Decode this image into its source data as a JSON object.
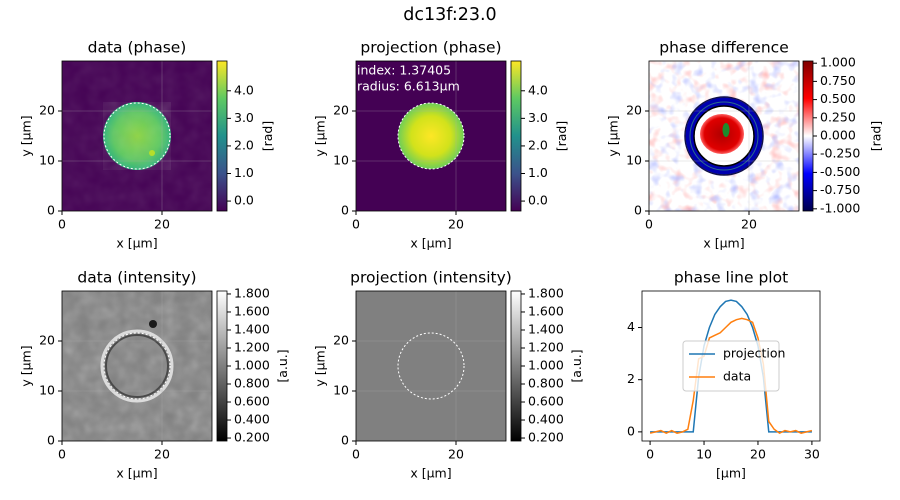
{
  "title": "dc13f:23.0",
  "chart_data": [
    {
      "type": "image",
      "title": "data (phase)",
      "xlabel": "x [µm]",
      "ylabel": "y [µm]",
      "xlim": [
        0,
        30
      ],
      "ylim": [
        0,
        30
      ],
      "xticks": [
        0,
        20
      ],
      "yticks": [
        0,
        10,
        20
      ],
      "grid": true,
      "colorbar": {
        "label": "[rad]",
        "colormap": "viridis",
        "lim": [
          -0.36,
          5.08
        ],
        "ticks": [
          {
            "value": 0,
            "label": "0.0"
          },
          {
            "value": 1,
            "label": "1.0"
          },
          {
            "value": 2,
            "label": "2.0"
          },
          {
            "value": 3,
            "label": "3.0"
          },
          {
            "value": 4,
            "label": "4.0"
          }
        ]
      }
    },
    {
      "type": "image",
      "title": "projection (phase)",
      "xlabel": "x [µm]",
      "ylabel": "y [µm]",
      "xlim": [
        0,
        30
      ],
      "ylim": [
        0,
        30
      ],
      "xticks": [
        0,
        20
      ],
      "yticks": [
        0,
        10,
        20
      ],
      "grid": true,
      "annotations": [
        "index: 1.37405",
        "radius: 6.613µm"
      ],
      "colorbar": {
        "label": "[rad]",
        "colormap": "viridis",
        "lim": [
          -0.36,
          5.08
        ],
        "ticks": [
          {
            "value": 0,
            "label": "0.0"
          },
          {
            "value": 1,
            "label": "1.0"
          },
          {
            "value": 2,
            "label": "2.0"
          },
          {
            "value": 3,
            "label": "3.0"
          },
          {
            "value": 4,
            "label": "4.0"
          }
        ]
      }
    },
    {
      "type": "image",
      "title": "phase difference",
      "xlabel": "x [µm]",
      "ylabel": "y [µm]",
      "xlim": [
        0,
        30
      ],
      "ylim": [
        0,
        30
      ],
      "xticks": [
        0,
        20
      ],
      "yticks": [
        0,
        10,
        20
      ],
      "grid": true,
      "colorbar": {
        "label": "[rad]",
        "colormap": "seismic",
        "lim": [
          -1.03,
          1.03
        ],
        "ticks": [
          {
            "value": 1,
            "label": "1.000"
          },
          {
            "value": 0.75,
            "label": "0.750"
          },
          {
            "value": 0.5,
            "label": "0.500"
          },
          {
            "value": 0.25,
            "label": "0.250"
          },
          {
            "value": 0,
            "label": "0.000"
          },
          {
            "value": -0.25,
            "label": "-0.250"
          },
          {
            "value": -0.5,
            "label": "-0.500"
          },
          {
            "value": -0.75,
            "label": "-0.750"
          },
          {
            "value": -1,
            "label": "-1.000"
          }
        ]
      }
    },
    {
      "type": "image",
      "title": "data (intensity)",
      "xlabel": "x [µm]",
      "ylabel": "y [µm]",
      "xlim": [
        0,
        30
      ],
      "ylim": [
        0,
        30
      ],
      "xticks": [
        0,
        20
      ],
      "yticks": [
        0,
        10,
        20
      ],
      "grid": true,
      "colorbar": {
        "label": "[a.u.]",
        "colormap": "gray",
        "lim": [
          0.167,
          1.833
        ],
        "ticks": [
          {
            "value": 1.8,
            "label": "1.800"
          },
          {
            "value": 1.6,
            "label": "1.600"
          },
          {
            "value": 1.4,
            "label": "1.400"
          },
          {
            "value": 1.2,
            "label": "1.200"
          },
          {
            "value": 1,
            "label": "1.000"
          },
          {
            "value": 0.8,
            "label": "0.800"
          },
          {
            "value": 0.6,
            "label": "0.600"
          },
          {
            "value": 0.4,
            "label": "0.400"
          },
          {
            "value": 0.2,
            "label": "0.200"
          }
        ]
      }
    },
    {
      "type": "image",
      "title": "projection (intensity)",
      "xlabel": "x [µm]",
      "ylabel": "y [µm]",
      "xlim": [
        0,
        30
      ],
      "ylim": [
        0,
        30
      ],
      "xticks": [
        0,
        20
      ],
      "yticks": [
        0,
        10,
        20
      ],
      "grid": true,
      "colorbar": {
        "label": "[a.u.]",
        "colormap": "gray",
        "lim": [
          0.167,
          1.833
        ],
        "ticks": [
          {
            "value": 1.8,
            "label": "1.800"
          },
          {
            "value": 1.6,
            "label": "1.600"
          },
          {
            "value": 1.4,
            "label": "1.400"
          },
          {
            "value": 1.2,
            "label": "1.200"
          },
          {
            "value": 1,
            "label": "1.000"
          },
          {
            "value": 0.8,
            "label": "0.800"
          },
          {
            "value": 0.6,
            "label": "0.600"
          },
          {
            "value": 0.4,
            "label": "0.400"
          },
          {
            "value": 0.2,
            "label": "0.200"
          }
        ]
      }
    },
    {
      "type": "line",
      "title": "phase line plot",
      "xlabel": "[µm]",
      "xlim": [
        -1.5,
        31.5
      ],
      "ylim": [
        -0.35,
        5.4
      ],
      "xticks": [
        0,
        10,
        20,
        30
      ],
      "yticks": [
        0,
        2,
        4
      ],
      "grid": false,
      "legend": "center",
      "x": [
        0,
        1,
        2,
        3,
        4,
        5,
        6,
        7,
        8,
        9,
        10,
        11,
        12,
        13,
        14,
        15,
        16,
        17,
        18,
        19,
        20,
        21,
        22,
        23,
        24,
        25,
        26,
        27,
        28,
        29,
        30
      ],
      "series": [
        {
          "name": "projection",
          "color": "#1f77b4",
          "values": [
            0,
            0,
            0,
            0,
            0,
            0,
            0,
            0,
            0,
            2.1,
            3.3,
            4.0,
            4.5,
            4.8,
            5.0,
            5.05,
            5.0,
            4.8,
            4.5,
            4.0,
            3.3,
            2.1,
            0,
            0,
            0,
            0,
            0,
            0,
            0,
            0,
            0
          ]
        },
        {
          "name": "data",
          "color": "#ff7f0e",
          "values": [
            -0.05,
            0,
            0.05,
            -0.05,
            0.05,
            -0.05,
            0,
            0.1,
            1.2,
            2.8,
            2.9,
            3.6,
            3.7,
            3.8,
            4.0,
            4.2,
            4.3,
            4.35,
            4.3,
            4.2,
            3.6,
            2.6,
            0.4,
            0.1,
            -0.05,
            0.05,
            0,
            0.05,
            -0.05,
            0,
            0.05
          ]
        }
      ]
    }
  ]
}
